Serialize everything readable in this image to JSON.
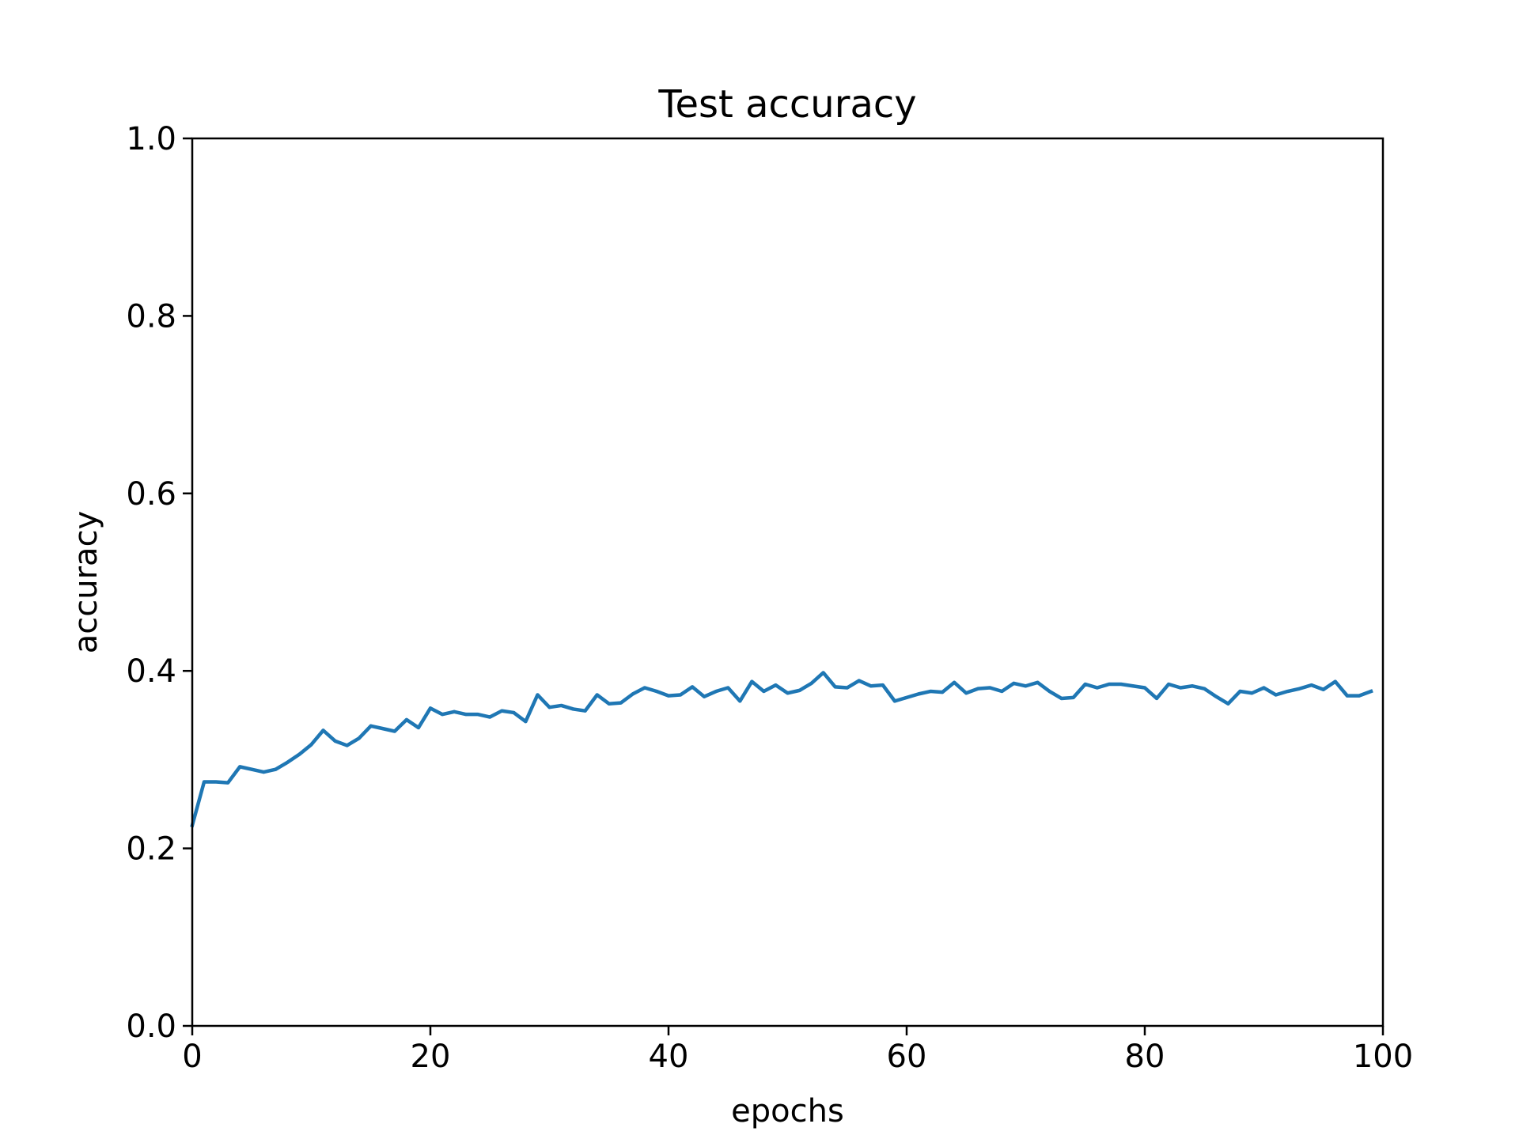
{
  "chart_data": {
    "type": "line",
    "title": "Test accuracy",
    "xlabel": "epochs",
    "ylabel": "accuracy",
    "xlim": [
      0,
      100
    ],
    "ylim": [
      0.0,
      1.0
    ],
    "xticks": [
      "0",
      "20",
      "40",
      "60",
      "80",
      "100"
    ],
    "yticks": [
      "0.0",
      "0.2",
      "0.4",
      "0.6",
      "0.8",
      "1.0"
    ],
    "grid": false,
    "series": [
      {
        "color": "#1f77b4",
        "x": [
          0,
          1,
          2,
          3,
          4,
          5,
          6,
          7,
          8,
          9,
          10,
          11,
          12,
          13,
          14,
          15,
          16,
          17,
          18,
          19,
          20,
          21,
          22,
          23,
          24,
          25,
          26,
          27,
          28,
          29,
          30,
          31,
          32,
          33,
          34,
          35,
          36,
          37,
          38,
          39,
          40,
          41,
          42,
          43,
          44,
          45,
          46,
          47,
          48,
          49,
          50,
          51,
          52,
          53,
          54,
          55,
          56,
          57,
          58,
          59,
          60,
          61,
          62,
          63,
          64,
          65,
          66,
          67,
          68,
          69,
          70,
          71,
          72,
          73,
          74,
          75,
          76,
          77,
          78,
          79,
          80,
          81,
          82,
          83,
          84,
          85,
          86,
          87,
          88,
          89,
          90,
          91,
          92,
          93,
          94,
          95,
          96,
          97,
          98,
          99
        ],
        "y": [
          0.226,
          0.275,
          0.275,
          0.274,
          0.292,
          0.289,
          0.286,
          0.289,
          0.297,
          0.306,
          0.317,
          0.333,
          0.321,
          0.316,
          0.324,
          0.338,
          0.335,
          0.332,
          0.345,
          0.336,
          0.358,
          0.351,
          0.354,
          0.351,
          0.351,
          0.348,
          0.355,
          0.353,
          0.343,
          0.373,
          0.359,
          0.361,
          0.357,
          0.355,
          0.373,
          0.363,
          0.364,
          0.374,
          0.381,
          0.377,
          0.372,
          0.373,
          0.382,
          0.371,
          0.377,
          0.381,
          0.366,
          0.388,
          0.377,
          0.384,
          0.375,
          0.378,
          0.386,
          0.398,
          0.382,
          0.381,
          0.389,
          0.383,
          0.384,
          0.366,
          0.37,
          0.374,
          0.377,
          0.376,
          0.387,
          0.375,
          0.38,
          0.381,
          0.377,
          0.386,
          0.383,
          0.387,
          0.377,
          0.369,
          0.37,
          0.385,
          0.381,
          0.385,
          0.385,
          0.383,
          0.381,
          0.369,
          0.385,
          0.381,
          0.383,
          0.38,
          0.371,
          0.363,
          0.377,
          0.375,
          0.381,
          0.373,
          0.377,
          0.38,
          0.384,
          0.379,
          0.388,
          0.372,
          0.372,
          0.377
        ]
      }
    ]
  }
}
